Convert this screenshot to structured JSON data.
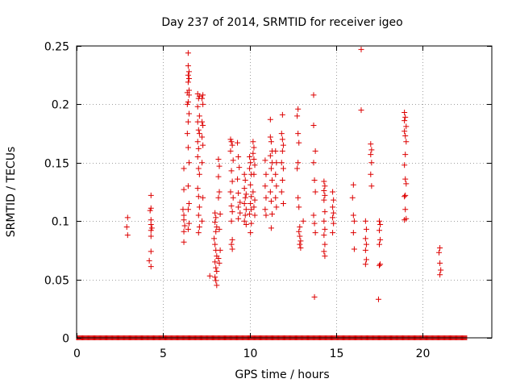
{
  "chart_data": {
    "type": "scatter",
    "title": "Day 237 of 2014, SRMTID for receiver igeo",
    "xlabel": "GPS time / hours",
    "ylabel": "SRMTID / TECUs",
    "xlim": [
      0,
      24
    ],
    "ylim": [
      0,
      0.25
    ],
    "x_ticks": [
      0,
      5,
      10,
      15,
      20
    ],
    "x_tick_labels": [
      "0",
      "5",
      "10",
      "15",
      "20"
    ],
    "y_ticks": [
      0,
      0.05,
      0.1,
      0.15,
      0.2,
      0.25
    ],
    "y_tick_labels": [
      "0",
      "0.05",
      "0.1",
      "0.15",
      "0.2",
      "0.25"
    ],
    "grid": true,
    "marker": "+",
    "color": "#dd0000",
    "zero_range": [
      0,
      22.6
    ],
    "series": [
      {
        "name": "SRMTID",
        "points": [
          [
            2.95,
            0.103
          ],
          [
            2.9,
            0.095
          ],
          [
            2.95,
            0.088
          ],
          [
            4.3,
            0.122
          ],
          [
            4.3,
            0.111
          ],
          [
            4.25,
            0.109
          ],
          [
            4.3,
            0.101
          ],
          [
            4.3,
            0.097
          ],
          [
            4.35,
            0.094
          ],
          [
            4.3,
            0.092
          ],
          [
            4.3,
            0.087
          ],
          [
            4.3,
            0.074
          ],
          [
            4.2,
            0.066
          ],
          [
            4.3,
            0.061
          ],
          [
            6.2,
            0.145
          ],
          [
            6.2,
            0.127
          ],
          [
            6.15,
            0.11
          ],
          [
            6.2,
            0.105
          ],
          [
            6.2,
            0.101
          ],
          [
            6.25,
            0.096
          ],
          [
            6.2,
            0.091
          ],
          [
            6.2,
            0.082
          ],
          [
            6.45,
            0.244
          ],
          [
            6.45,
            0.233
          ],
          [
            6.5,
            0.228
          ],
          [
            6.45,
            0.225
          ],
          [
            6.5,
            0.222
          ],
          [
            6.45,
            0.219
          ],
          [
            6.5,
            0.212
          ],
          [
            6.4,
            0.21
          ],
          [
            6.5,
            0.208
          ],
          [
            6.45,
            0.202
          ],
          [
            6.4,
            0.2
          ],
          [
            6.5,
            0.192
          ],
          [
            6.45,
            0.185
          ],
          [
            6.4,
            0.175
          ],
          [
            6.45,
            0.163
          ],
          [
            6.5,
            0.15
          ],
          [
            6.45,
            0.13
          ],
          [
            6.5,
            0.115
          ],
          [
            6.45,
            0.11
          ],
          [
            6.5,
            0.098
          ],
          [
            6.45,
            0.093
          ],
          [
            7.0,
            0.209
          ],
          [
            7.1,
            0.207
          ],
          [
            7.05,
            0.205
          ],
          [
            7.0,
            0.198
          ],
          [
            7.1,
            0.19
          ],
          [
            7.0,
            0.185
          ],
          [
            7.05,
            0.178
          ],
          [
            7.1,
            0.175
          ],
          [
            7.0,
            0.168
          ],
          [
            7.05,
            0.162
          ],
          [
            7.0,
            0.155
          ],
          [
            7.05,
            0.145
          ],
          [
            7.1,
            0.14
          ],
          [
            7.0,
            0.128
          ],
          [
            7.05,
            0.121
          ],
          [
            7.1,
            0.112
          ],
          [
            7.05,
            0.105
          ],
          [
            7.1,
            0.095
          ],
          [
            7.05,
            0.09
          ],
          [
            7.3,
            0.208
          ],
          [
            7.25,
            0.205
          ],
          [
            7.3,
            0.2
          ],
          [
            7.25,
            0.185
          ],
          [
            7.3,
            0.182
          ],
          [
            7.25,
            0.172
          ],
          [
            7.3,
            0.165
          ],
          [
            7.25,
            0.15
          ],
          [
            7.3,
            0.12
          ],
          [
            7.25,
            0.1
          ],
          [
            7.7,
            0.053
          ],
          [
            8.0,
            0.107
          ],
          [
            8.05,
            0.103
          ],
          [
            8.0,
            0.099
          ],
          [
            8.1,
            0.095
          ],
          [
            8.05,
            0.091
          ],
          [
            7.95,
            0.085
          ],
          [
            8.0,
            0.08
          ],
          [
            8.05,
            0.075
          ],
          [
            8.1,
            0.07
          ],
          [
            8.0,
            0.065
          ],
          [
            8.05,
            0.06
          ],
          [
            8.1,
            0.057
          ],
          [
            8.0,
            0.052
          ],
          [
            8.05,
            0.049
          ],
          [
            8.1,
            0.045
          ],
          [
            8.2,
            0.153
          ],
          [
            8.25,
            0.147
          ],
          [
            8.2,
            0.138
          ],
          [
            8.25,
            0.125
          ],
          [
            8.2,
            0.12
          ],
          [
            8.3,
            0.106
          ],
          [
            8.25,
            0.093
          ],
          [
            8.3,
            0.075
          ],
          [
            8.2,
            0.068
          ],
          [
            8.25,
            0.064
          ],
          [
            8.9,
            0.17
          ],
          [
            8.95,
            0.168
          ],
          [
            9.0,
            0.165
          ],
          [
            8.9,
            0.16
          ],
          [
            9.05,
            0.152
          ],
          [
            8.95,
            0.143
          ],
          [
            9.0,
            0.134
          ],
          [
            8.9,
            0.125
          ],
          [
            9.05,
            0.12
          ],
          [
            8.95,
            0.113
          ],
          [
            9.0,
            0.108
          ],
          [
            8.95,
            0.1
          ],
          [
            9.0,
            0.084
          ],
          [
            8.95,
            0.08
          ],
          [
            9.0,
            0.076
          ],
          [
            9.3,
            0.167
          ],
          [
            9.35,
            0.155
          ],
          [
            9.4,
            0.146
          ],
          [
            9.3,
            0.136
          ],
          [
            9.35,
            0.124
          ],
          [
            9.45,
            0.116
          ],
          [
            9.35,
            0.112
          ],
          [
            9.45,
            0.107
          ],
          [
            9.35,
            0.102
          ],
          [
            9.7,
            0.14
          ],
          [
            9.75,
            0.135
          ],
          [
            9.7,
            0.128
          ],
          [
            9.8,
            0.123
          ],
          [
            9.75,
            0.12
          ],
          [
            9.7,
            0.115
          ],
          [
            9.8,
            0.11
          ],
          [
            9.75,
            0.105
          ],
          [
            9.7,
            0.1
          ],
          [
            9.8,
            0.097
          ],
          [
            10.0,
            0.155
          ],
          [
            10.05,
            0.15
          ],
          [
            10.0,
            0.145
          ],
          [
            10.1,
            0.14
          ],
          [
            10.05,
            0.131
          ],
          [
            10.1,
            0.121
          ],
          [
            10.05,
            0.115
          ],
          [
            10.1,
            0.11
          ],
          [
            10.0,
            0.106
          ],
          [
            10.1,
            0.098
          ],
          [
            10.05,
            0.09
          ],
          [
            10.2,
            0.168
          ],
          [
            10.25,
            0.163
          ],
          [
            10.2,
            0.158
          ],
          [
            10.25,
            0.153
          ],
          [
            10.3,
            0.148
          ],
          [
            10.25,
            0.14
          ],
          [
            10.2,
            0.125
          ],
          [
            10.3,
            0.118
          ],
          [
            10.25,
            0.112
          ],
          [
            10.3,
            0.105
          ],
          [
            10.9,
            0.152
          ],
          [
            10.95,
            0.14
          ],
          [
            10.9,
            0.13
          ],
          [
            10.95,
            0.12
          ],
          [
            10.9,
            0.11
          ],
          [
            10.95,
            0.105
          ],
          [
            11.2,
            0.187
          ],
          [
            11.2,
            0.172
          ],
          [
            11.25,
            0.168
          ],
          [
            11.3,
            0.16
          ],
          [
            11.2,
            0.156
          ],
          [
            11.3,
            0.15
          ],
          [
            11.25,
            0.145
          ],
          [
            11.3,
            0.135
          ],
          [
            11.2,
            0.125
          ],
          [
            11.25,
            0.117
          ],
          [
            11.3,
            0.106
          ],
          [
            11.25,
            0.094
          ],
          [
            11.5,
            0.16
          ],
          [
            11.55,
            0.15
          ],
          [
            11.5,
            0.14
          ],
          [
            11.55,
            0.13
          ],
          [
            11.5,
            0.12
          ],
          [
            11.55,
            0.112
          ],
          [
            11.9,
            0.191
          ],
          [
            11.85,
            0.175
          ],
          [
            11.9,
            0.17
          ],
          [
            11.95,
            0.165
          ],
          [
            11.9,
            0.16
          ],
          [
            11.85,
            0.15
          ],
          [
            11.95,
            0.145
          ],
          [
            11.9,
            0.135
          ],
          [
            11.85,
            0.125
          ],
          [
            11.95,
            0.115
          ],
          [
            12.8,
            0.196
          ],
          [
            12.75,
            0.19
          ],
          [
            12.8,
            0.175
          ],
          [
            12.85,
            0.167
          ],
          [
            12.8,
            0.15
          ],
          [
            12.75,
            0.145
          ],
          [
            12.8,
            0.12
          ],
          [
            12.85,
            0.112
          ],
          [
            12.9,
            0.095
          ],
          [
            12.85,
            0.091
          ],
          [
            12.9,
            0.087
          ],
          [
            12.95,
            0.083
          ],
          [
            12.9,
            0.08
          ],
          [
            12.95,
            0.077
          ],
          [
            13.1,
            0.1
          ],
          [
            13.7,
            0.208
          ],
          [
            13.7,
            0.182
          ],
          [
            13.8,
            0.16
          ],
          [
            13.7,
            0.15
          ],
          [
            13.75,
            0.135
          ],
          [
            13.8,
            0.125
          ],
          [
            13.7,
            0.105
          ],
          [
            13.75,
            0.098
          ],
          [
            13.8,
            0.09
          ],
          [
            13.75,
            0.035
          ],
          [
            14.3,
            0.134
          ],
          [
            14.35,
            0.13
          ],
          [
            14.3,
            0.126
          ],
          [
            14.35,
            0.122
          ],
          [
            14.3,
            0.118
          ],
          [
            14.35,
            0.108
          ],
          [
            14.3,
            0.1
          ],
          [
            14.35,
            0.093
          ],
          [
            14.3,
            0.088
          ],
          [
            14.35,
            0.08
          ],
          [
            14.3,
            0.074
          ],
          [
            14.35,
            0.07
          ],
          [
            14.8,
            0.125
          ],
          [
            14.85,
            0.118
          ],
          [
            14.8,
            0.112
          ],
          [
            14.85,
            0.107
          ],
          [
            14.8,
            0.103
          ],
          [
            14.85,
            0.098
          ],
          [
            14.8,
            0.09
          ],
          [
            16.0,
            0.131
          ],
          [
            15.95,
            0.12
          ],
          [
            16.0,
            0.105
          ],
          [
            16.05,
            0.1
          ],
          [
            16.0,
            0.09
          ],
          [
            16.05,
            0.076
          ],
          [
            16.45,
            0.247
          ],
          [
            16.45,
            0.195
          ],
          [
            16.7,
            0.1
          ],
          [
            16.75,
            0.093
          ],
          [
            16.7,
            0.085
          ],
          [
            16.75,
            0.08
          ],
          [
            16.7,
            0.075
          ],
          [
            16.75,
            0.067
          ],
          [
            16.7,
            0.063
          ],
          [
            17.0,
            0.166
          ],
          [
            17.05,
            0.161
          ],
          [
            17.0,
            0.157
          ],
          [
            17.05,
            0.15
          ],
          [
            17.0,
            0.14
          ],
          [
            17.05,
            0.13
          ],
          [
            17.5,
            0.1
          ],
          [
            17.55,
            0.097
          ],
          [
            17.5,
            0.092
          ],
          [
            17.55,
            0.084
          ],
          [
            17.5,
            0.08
          ],
          [
            17.55,
            0.063
          ],
          [
            17.5,
            0.062
          ],
          [
            17.45,
            0.033
          ],
          [
            18.95,
            0.193
          ],
          [
            19.0,
            0.189
          ],
          [
            18.95,
            0.186
          ],
          [
            19.05,
            0.181
          ],
          [
            18.95,
            0.177
          ],
          [
            19.0,
            0.173
          ],
          [
            19.05,
            0.168
          ],
          [
            19.0,
            0.157
          ],
          [
            18.95,
            0.148
          ],
          [
            19.0,
            0.136
          ],
          [
            19.05,
            0.132
          ],
          [
            19.0,
            0.122
          ],
          [
            18.95,
            0.121
          ],
          [
            19.0,
            0.11
          ],
          [
            19.05,
            0.102
          ],
          [
            18.95,
            0.101
          ],
          [
            21.0,
            0.077
          ],
          [
            20.95,
            0.073
          ],
          [
            21.0,
            0.064
          ],
          [
            21.05,
            0.058
          ],
          [
            21.0,
            0.054
          ]
        ]
      }
    ]
  }
}
